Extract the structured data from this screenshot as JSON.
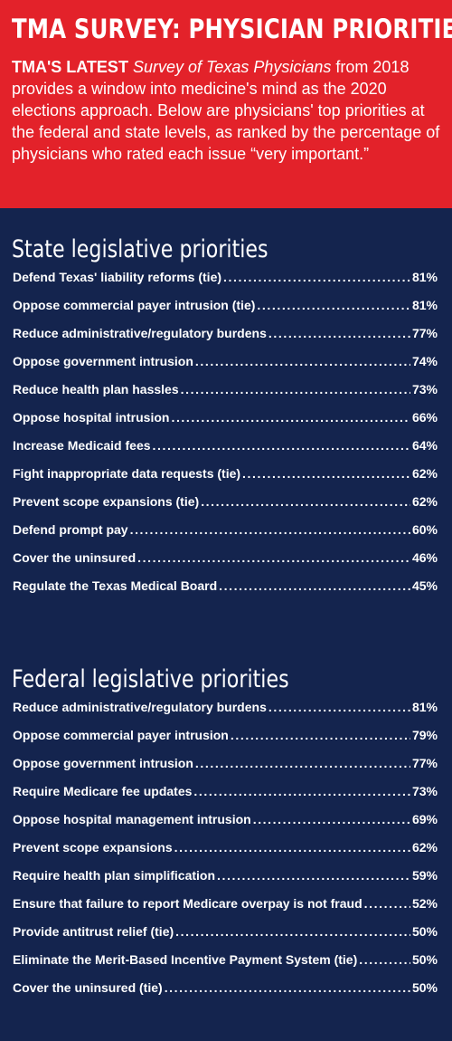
{
  "header": {
    "title": "TMA SURVEY: PHYSICIAN PRIORITIES",
    "intro_lead": "TMA'S LATEST",
    "intro_survey": "Survey of Texas Physicians",
    "intro_rest": "from 2018 provides a window into medicine's mind as the 2020 elections approach. Below are physicians' top priorities at the federal and state levels, as ranked by the percentage of physicians who rated each issue “very important.”"
  },
  "state": {
    "title": "State legislative priorities",
    "items": [
      {
        "label": "Defend Texas' liability reforms (tie)",
        "value": "81%"
      },
      {
        "label": "Oppose commercial payer intrusion (tie)",
        "value": "81%"
      },
      {
        "label": "Reduce administrative/regulatory burdens",
        "value": "77%"
      },
      {
        "label": "Oppose government intrusion",
        "value": "74%"
      },
      {
        "label": "Reduce health plan hassles",
        "value": "73%"
      },
      {
        "label": "Oppose hospital intrusion",
        "value": "66%"
      },
      {
        "label": "Increase Medicaid fees",
        "value": "64%"
      },
      {
        "label": "Fight inappropriate data requests (tie)",
        "value": "62%"
      },
      {
        "label": "Prevent scope expansions (tie)",
        "value": "62%"
      },
      {
        "label": "Defend prompt pay",
        "value": "60%"
      },
      {
        "label": "Cover the uninsured",
        "value": "46%"
      },
      {
        "label": "Regulate the Texas Medical Board",
        "value": "45%"
      }
    ]
  },
  "federal": {
    "title": "Federal legislative priorities",
    "items": [
      {
        "label": "Reduce administrative/regulatory burdens",
        "value": "81%"
      },
      {
        "label": "Oppose commercial payer intrusion",
        "value": "79%"
      },
      {
        "label": "Oppose government intrusion",
        "value": "77%"
      },
      {
        "label": "Require Medicare fee updates",
        "value": "73%"
      },
      {
        "label": "Oppose hospital management intrusion",
        "value": "69%"
      },
      {
        "label": "Prevent scope expansions",
        "value": "62%"
      },
      {
        "label": "Require health plan simplification",
        "value": "59%"
      },
      {
        "label": "Ensure that failure to report Medicare overpay is not fraud",
        "value": "52%"
      },
      {
        "label": "Provide antitrust relief (tie)",
        "value": "50%"
      },
      {
        "label": "Eliminate the Merit-Based Incentive Payment System (tie)",
        "value": "50%"
      },
      {
        "label": "Cover the uninsured (tie)",
        "value": "50%"
      }
    ]
  },
  "colors": {
    "header_red": "#e3222a",
    "navy": "#14244e",
    "text": "#ffffff"
  }
}
